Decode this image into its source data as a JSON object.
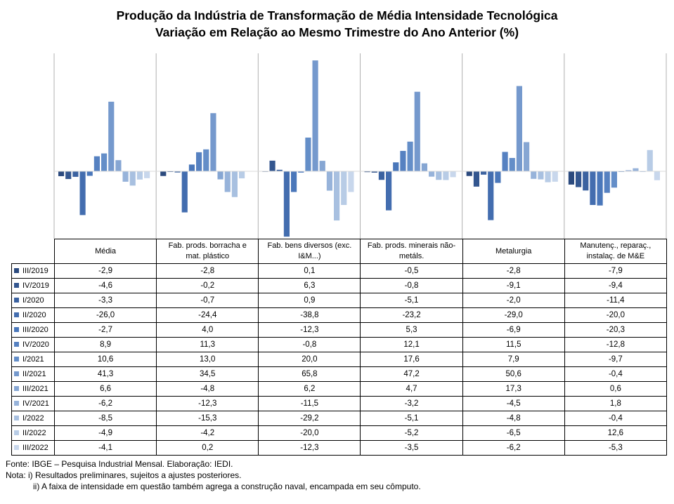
{
  "title": {
    "line1": "Produção da Indústria de Transformação de Média Intensidade Tecnológica",
    "line2": "Variação em Relação ao Mesmo Trimestre do Ano Anterior (%)"
  },
  "chart_data": {
    "type": "bar",
    "categories": [
      "Média",
      "Fab. prods. borracha e mat. plástico",
      "Fab. bens diversos (exc. I&M...)",
      "Fab. prods. minerais não-metáls.",
      "Metalurgia",
      "Manutenç., reparaç., instalaç. de M&E"
    ],
    "categories_display": [
      [
        "Média"
      ],
      [
        "Fab. prods. borracha e",
        "mat. plástico"
      ],
      [
        "Fab. bens diversos (exc.",
        "I&M...)"
      ],
      [
        "Fab. prods. minerais não-",
        "metáls."
      ],
      [
        "Metalurgia"
      ],
      [
        "Manutenç., reparaç.,",
        "instalaç. de M&E"
      ]
    ],
    "ylim": [
      -40,
      70
    ],
    "grid": false,
    "legend": "table-rows",
    "series": [
      {
        "name": "III/2019",
        "color": "#2b4a7e",
        "values": [
          -2.9,
          -2.8,
          0.1,
          -0.5,
          -2.8,
          -7.9
        ],
        "labels": [
          "-2,9",
          "-2,8",
          "0,1",
          "-0,5",
          "-2,8",
          "-7,9"
        ]
      },
      {
        "name": "IV/2019",
        "color": "#33568f",
        "values": [
          -4.6,
          -0.2,
          6.3,
          -0.8,
          -9.1,
          -9.4
        ],
        "labels": [
          "-4,6",
          "-0,2",
          "6,3",
          "-0,8",
          "-9,1",
          "-9,4"
        ]
      },
      {
        "name": "I/2020",
        "color": "#3b62a0",
        "values": [
          -3.3,
          -0.7,
          0.9,
          -5.1,
          -2.0,
          -11.4
        ],
        "labels": [
          "-3,3",
          "-0,7",
          "0,9",
          "-5,1",
          "-2,0",
          "-11,4"
        ]
      },
      {
        "name": "II/2020",
        "color": "#436daf",
        "values": [
          -26.0,
          -24.4,
          -38.8,
          -23.2,
          -29.0,
          -20.0
        ],
        "labels": [
          "-26,0",
          "-24,4",
          "-38,8",
          "-23,2",
          "-29,0",
          "-20,0"
        ]
      },
      {
        "name": "III/2020",
        "color": "#4a77ba",
        "values": [
          -2.7,
          4.0,
          -12.3,
          5.3,
          -6.9,
          -20.3
        ],
        "labels": [
          "-2,7",
          "4,0",
          "-12,3",
          "5,3",
          "-6,9",
          "-20,3"
        ]
      },
      {
        "name": "IV/2020",
        "color": "#5681c1",
        "values": [
          8.9,
          11.3,
          -0.8,
          12.1,
          11.5,
          -12.8
        ],
        "labels": [
          "8,9",
          "11,3",
          "-0,8",
          "12,1",
          "11,5",
          "-12,8"
        ]
      },
      {
        "name": "I/2021",
        "color": "#648ec8",
        "values": [
          10.6,
          13.0,
          20.0,
          17.6,
          7.9,
          -9.7
        ],
        "labels": [
          "10,6",
          "13,0",
          "20,0",
          "17,6",
          "7,9",
          "-9,7"
        ]
      },
      {
        "name": "II/2021",
        "color": "#7599cd",
        "values": [
          41.3,
          34.5,
          65.8,
          47.2,
          50.6,
          -0.4
        ],
        "labels": [
          "41,3",
          "34,5",
          "65,8",
          "47,2",
          "50,6",
          "-0,4"
        ]
      },
      {
        "name": "III/2021",
        "color": "#86a6d3",
        "values": [
          6.6,
          -4.8,
          6.2,
          4.7,
          17.3,
          0.6
        ],
        "labels": [
          "6,6",
          "-4,8",
          "6,2",
          "4,7",
          "17,3",
          "0,6"
        ]
      },
      {
        "name": "IV/2021",
        "color": "#97b3da",
        "values": [
          -6.2,
          -12.3,
          -11.5,
          -3.2,
          -4.5,
          1.8
        ],
        "labels": [
          "-6,2",
          "-12,3",
          "-11,5",
          "-3,2",
          "-4,5",
          "1,8"
        ]
      },
      {
        "name": "I/2022",
        "color": "#a8c0e0",
        "values": [
          -8.5,
          -15.3,
          -29.2,
          -5.1,
          -4.8,
          -0.4
        ],
        "labels": [
          "-8,5",
          "-15,3",
          "-29,2",
          "-5,1",
          "-4,8",
          "-0,4"
        ]
      },
      {
        "name": "II/2022",
        "color": "#b8cce6",
        "values": [
          -4.9,
          -4.2,
          -20.0,
          -5.2,
          -6.5,
          12.6
        ],
        "labels": [
          "-4,9",
          "-4,2",
          "-20,0",
          "-5,2",
          "-6,5",
          "12,6"
        ]
      },
      {
        "name": "III/2022",
        "color": "#c8d7ec",
        "values": [
          -4.1,
          0.2,
          -12.3,
          -3.5,
          -6.2,
          -5.3
        ],
        "labels": [
          "-4,1",
          "0,2",
          "-12,3",
          "-3,5",
          "-6,2",
          "-5,3"
        ]
      }
    ]
  },
  "notes": {
    "source": "Fonte: IBGE – Pesquisa Industrial Mensal. Elaboração: IEDI.",
    "note1": "Nota: i) Resultados preliminares, sujeitos a ajustes posteriores.",
    "note2": "ii) A faixa de intensidade em questão também agrega a construção naval, encampada em seu cômputo."
  }
}
